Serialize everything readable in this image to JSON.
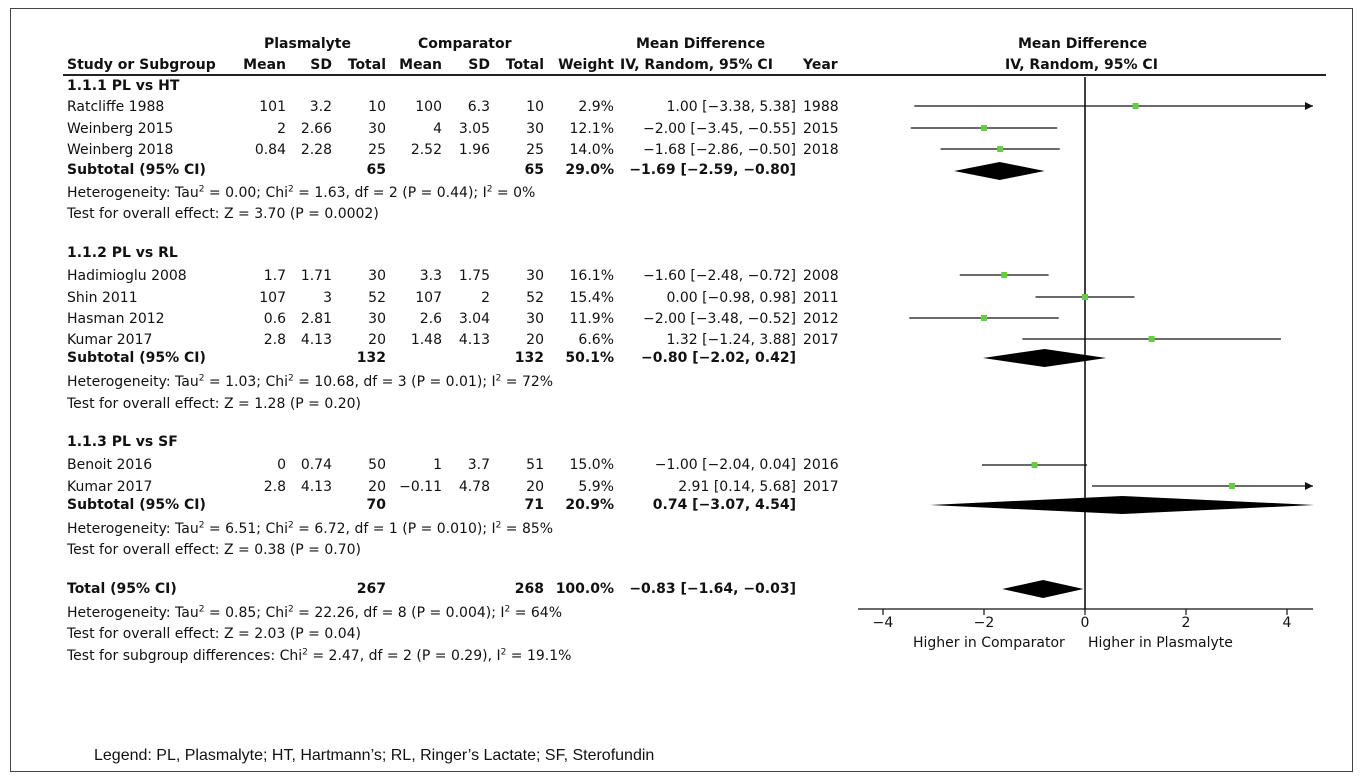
{
  "headers": {
    "study": "Study or Subgroup",
    "group1": "Plasmalyte",
    "group2": "Comparator",
    "mean": "Mean",
    "sd": "SD",
    "total": "Total",
    "weight": "Weight",
    "md_title": "Mean Difference",
    "md_sub": "IV, Random, 95% CI",
    "year": "Year",
    "plot_title": "Mean Difference",
    "plot_sub": "IV, Random, 95% CI"
  },
  "subgroups": [
    {
      "title": "1.1.1 PL vs HT",
      "studies": [
        {
          "name": "Ratcliffe 1988",
          "m1": "101",
          "sd1": "3.2",
          "n1": "10",
          "m2": "100",
          "sd2": "6.3",
          "n2": "10",
          "w": "2.9%",
          "ci": "1.00 [−3.38, 5.38]",
          "year": "1988"
        },
        {
          "name": "Weinberg 2015",
          "m1": "2",
          "sd1": "2.66",
          "n1": "30",
          "m2": "4",
          "sd2": "3.05",
          "n2": "30",
          "w": "12.1%",
          "ci": "−2.00 [−3.45, −0.55]",
          "year": "2015"
        },
        {
          "name": "Weinberg 2018",
          "m1": "0.84",
          "sd1": "2.28",
          "n1": "25",
          "m2": "2.52",
          "sd2": "1.96",
          "n2": "25",
          "w": "14.0%",
          "ci": "−1.68 [−2.86, −0.50]",
          "year": "2018"
        }
      ],
      "subtotal": {
        "label": "Subtotal (95% CI)",
        "n1": "65",
        "n2": "65",
        "w": "29.0%",
        "ci": "−1.69 [−2.59, −0.80]"
      },
      "het_pre": "Heterogeneity: Tau",
      "het_mid": " = 0.00; Chi",
      "het_mid2": " = 1.63, df = 2 (P = 0.44); I",
      "het_end": " = 0%",
      "effect": "Test for overall effect: Z = 3.70 (P = 0.0002)"
    },
    {
      "title": "1.1.2 PL vs RL",
      "studies": [
        {
          "name": "Hadimioglu 2008",
          "m1": "1.7",
          "sd1": "1.71",
          "n1": "30",
          "m2": "3.3",
          "sd2": "1.75",
          "n2": "30",
          "w": "16.1%",
          "ci": "−1.60 [−2.48, −0.72]",
          "year": "2008"
        },
        {
          "name": "Shin 2011",
          "m1": "107",
          "sd1": "3",
          "n1": "52",
          "m2": "107",
          "sd2": "2",
          "n2": "52",
          "w": "15.4%",
          "ci": "0.00 [−0.98, 0.98]",
          "year": "2011"
        },
        {
          "name": "Hasman 2012",
          "m1": "0.6",
          "sd1": "2.81",
          "n1": "30",
          "m2": "2.6",
          "sd2": "3.04",
          "n2": "30",
          "w": "11.9%",
          "ci": "−2.00 [−3.48, −0.52]",
          "year": "2012"
        },
        {
          "name": "Kumar 2017",
          "m1": "2.8",
          "sd1": "4.13",
          "n1": "20",
          "m2": "1.48",
          "sd2": "4.13",
          "n2": "20",
          "w": "6.6%",
          "ci": "1.32 [−1.24, 3.88]",
          "year": "2017"
        }
      ],
      "subtotal": {
        "label": "Subtotal (95% CI)",
        "n1": "132",
        "n2": "132",
        "w": "50.1%",
        "ci": "−0.80 [−2.02, 0.42]"
      },
      "het_pre": "Heterogeneity: Tau",
      "het_mid": " = 1.03; Chi",
      "het_mid2": " = 10.68, df = 3 (P = 0.01); I",
      "het_end": " = 72%",
      "effect": "Test for overall effect: Z = 1.28 (P = 0.20)"
    },
    {
      "title": "1.1.3 PL vs SF",
      "studies": [
        {
          "name": "Benoit 2016",
          "m1": "0",
          "sd1": "0.74",
          "n1": "50",
          "m2": "1",
          "sd2": "3.7",
          "n2": "51",
          "w": "15.0%",
          "ci": "−1.00 [−2.04, 0.04]",
          "year": "2016"
        },
        {
          "name": "Kumar 2017",
          "m1": "2.8",
          "sd1": "4.13",
          "n1": "20",
          "m2": "−0.11",
          "sd2": "4.78",
          "n2": "20",
          "w": "5.9%",
          "ci": "2.91 [0.14, 5.68]",
          "year": "2017"
        }
      ],
      "subtotal": {
        "label": "Subtotal (95% CI)",
        "n1": "70",
        "n2": "71",
        "w": "20.9%",
        "ci": "0.74 [−3.07, 4.54]"
      },
      "het_pre": "Heterogeneity: Tau",
      "het_mid": " = 6.51; Chi",
      "het_mid2": " = 6.72, df = 1 (P = 0.010); I",
      "het_end": " = 85%",
      "effect": "Test for overall effect: Z = 0.38 (P = 0.70)"
    }
  ],
  "total": {
    "label": "Total (95% CI)",
    "n1": "267",
    "n2": "268",
    "w": "100.0%",
    "ci": "−0.83 [−1.64, −0.03]"
  },
  "total_het_pre": "Heterogeneity: Tau",
  "total_het_mid": " = 0.85; Chi",
  "total_het_mid2": " = 22.26, df = 8 (P = 0.004); I",
  "total_het_end": " = 64%",
  "total_effect": "Test for overall effect: Z = 2.03 (P = 0.04)",
  "subgroup_diff_pre": "Test for subgroup differences: Chi",
  "subgroup_diff_mid": " = 2.47, df = 2 (P = 0.29), I",
  "subgroup_diff_end": " = 19.1%",
  "superscript": "2",
  "legend": "Legend: PL, Plasmalyte; HT, Hartmann’s; RL, Ringer’s Lactate; SF, Sterofundin",
  "colors": {
    "point": "#66cc44",
    "diamond": "#000000",
    "line": "#111111"
  },
  "chart_data": {
    "type": "scatter",
    "title": "Mean Difference",
    "subtitle": "IV, Random, 95% CI",
    "xlim": [
      -4,
      4
    ],
    "xticks": [
      "−4",
      "−2",
      "0",
      "2",
      "4"
    ],
    "xtick_values": [
      -4,
      -2,
      0,
      2,
      4
    ],
    "label_left": "Higher in Comparator",
    "label_right": "Higher in Plasmalyte",
    "rows": [
      {
        "study": "Ratcliffe 1988",
        "kind": "study",
        "md": 1.0,
        "lo": -3.38,
        "hi": 5.38
      },
      {
        "study": "Weinberg 2015",
        "kind": "study",
        "md": -2.0,
        "lo": -3.45,
        "hi": -0.55
      },
      {
        "study": "Weinberg 2018",
        "kind": "study",
        "md": -1.68,
        "lo": -2.86,
        "hi": -0.5
      },
      {
        "study": "Subtotal 1.1.1",
        "kind": "diamond",
        "md": -1.69,
        "lo": -2.59,
        "hi": -0.8
      },
      {
        "study": "Hadimioglu 2008",
        "kind": "study",
        "md": -1.6,
        "lo": -2.48,
        "hi": -0.72
      },
      {
        "study": "Shin 2011",
        "kind": "study",
        "md": 0.0,
        "lo": -0.98,
        "hi": 0.98
      },
      {
        "study": "Hasman 2012",
        "kind": "study",
        "md": -2.0,
        "lo": -3.48,
        "hi": -0.52
      },
      {
        "study": "Kumar 2017",
        "kind": "study",
        "md": 1.32,
        "lo": -1.24,
        "hi": 3.88
      },
      {
        "study": "Subtotal 1.1.2",
        "kind": "diamond",
        "md": -0.8,
        "lo": -2.02,
        "hi": 0.42
      },
      {
        "study": "Benoit 2016",
        "kind": "study",
        "md": -1.0,
        "lo": -2.04,
        "hi": 0.04
      },
      {
        "study": "Kumar 2017",
        "kind": "study",
        "md": 2.91,
        "lo": 0.14,
        "hi": 5.68
      },
      {
        "study": "Subtotal 1.1.3",
        "kind": "diamond",
        "md": 0.74,
        "lo": -3.07,
        "hi": 4.54
      },
      {
        "study": "Total",
        "kind": "diamond",
        "md": -0.83,
        "lo": -1.64,
        "hi": -0.03
      }
    ]
  }
}
